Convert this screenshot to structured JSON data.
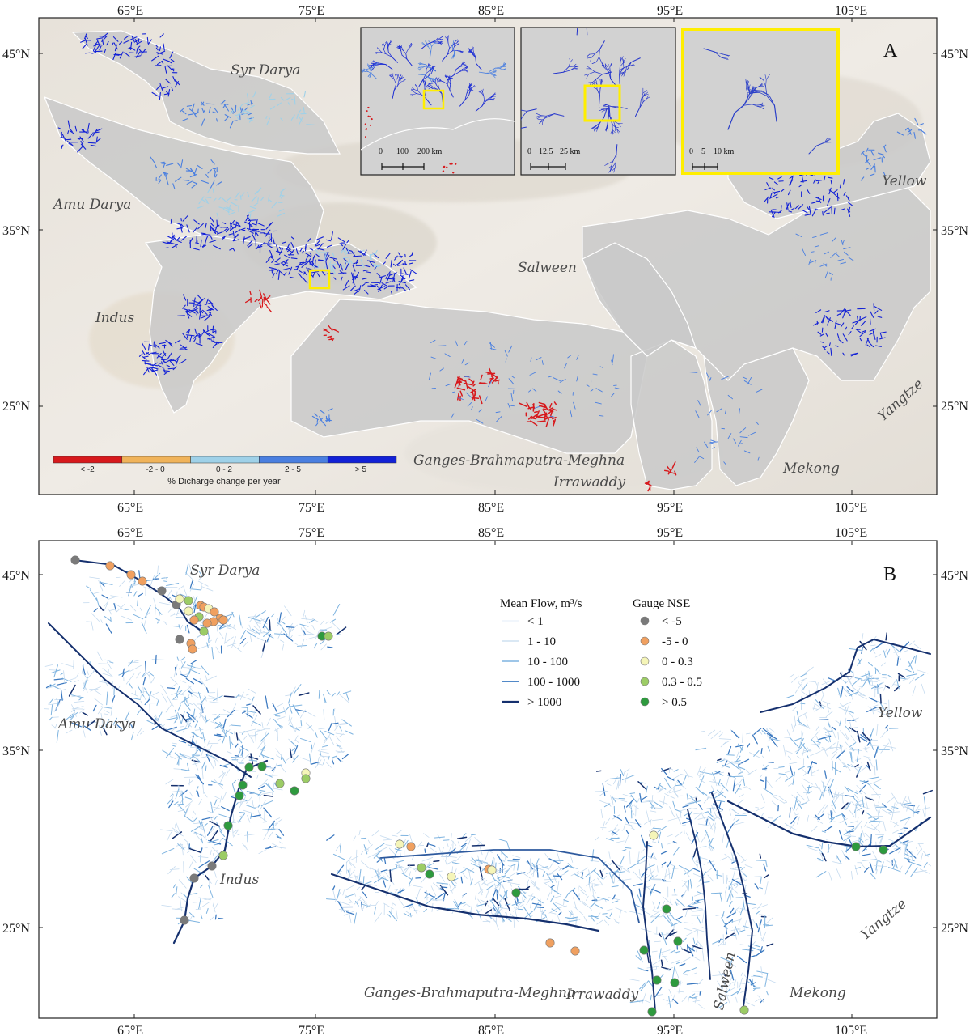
{
  "panel_a": {
    "letter": "A",
    "lon_labels": [
      "65°E",
      "75°E",
      "85°E",
      "95°E",
      "105°E"
    ],
    "lat_labels": [
      "45°N",
      "35°N",
      "25°N"
    ],
    "basins": [
      "Syr Darya",
      "Amu Darya",
      "Indus",
      "Salween",
      "Yellow",
      "Yangtze",
      "Ganges-Brahmaputra-Meghna",
      "Irrawaddy",
      "Mekong"
    ],
    "colorbar": {
      "title": "% Dicharge change per year",
      "bins": [
        {
          "label": "< -2",
          "color": "#d7191c"
        },
        {
          "label": "-2 - 0",
          "color": "#f0b35a"
        },
        {
          "label": "0 - 2",
          "color": "#9fd1e8"
        },
        {
          "label": "2 - 5",
          "color": "#4a7fe0"
        },
        {
          "label": "> 5",
          "color": "#1221d6"
        }
      ]
    },
    "insets": [
      {
        "scale": [
          "0",
          "100",
          "200 km"
        ]
      },
      {
        "scale": [
          "0",
          "12.5",
          "25 km"
        ]
      },
      {
        "scale": [
          "0",
          "5",
          "10 km"
        ]
      }
    ],
    "highlight_color": "#ffee00"
  },
  "panel_b": {
    "letter": "B",
    "lon_labels": [
      "65°E",
      "75°E",
      "85°E",
      "95°E",
      "105°E"
    ],
    "lat_labels": [
      "45°N",
      "35°N",
      "25°N"
    ],
    "basins": [
      "Syr Darya",
      "Amu Darya",
      "Indus",
      "Yellow",
      "Yangtze",
      "Ganges-Brahmaputra-Meghna",
      "Irrawaddy",
      "Salween",
      "Mekong"
    ],
    "flow_legend": {
      "title": "Mean Flow, m³/s",
      "items": [
        {
          "label": "< 1",
          "color": "#e3eef8"
        },
        {
          "label": "1 - 10",
          "color": "#c3d9ee"
        },
        {
          "label": "10 - 100",
          "color": "#7fb4e0"
        },
        {
          "label": "100 - 1000",
          "color": "#3a78c0"
        },
        {
          "label": "> 1000",
          "color": "#15306e"
        }
      ]
    },
    "gauge_legend": {
      "title": "Gauge NSE",
      "items": [
        {
          "label": "< -5",
          "color": "#7a7a7a"
        },
        {
          "label": "-5 - 0",
          "color": "#f0a060"
        },
        {
          "label": "0 - 0.3",
          "color": "#f5f5b8"
        },
        {
          "label": "0.3 - 0.5",
          "color": "#9ccc65"
        },
        {
          "label": "> 0.5",
          "color": "#2e9a3e"
        }
      ]
    }
  }
}
